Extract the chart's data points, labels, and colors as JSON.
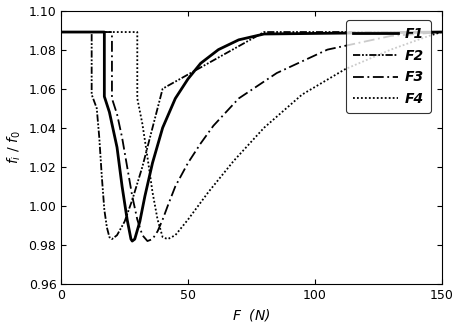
{
  "title": "",
  "xlabel": "F  (N)",
  "ylabel": "f_i / f_0",
  "xlim": [
    0,
    150
  ],
  "ylim": [
    0.96,
    1.1
  ],
  "yticks": [
    0.96,
    0.98,
    1.0,
    1.02,
    1.04,
    1.06,
    1.08,
    1.1
  ],
  "xticks": [
    0,
    50,
    100,
    150
  ],
  "legend_labels": [
    "F1",
    "F2",
    "F3",
    "F4"
  ],
  "background_color": "white",
  "F1_x": [
    0,
    17,
    17,
    19,
    22,
    24,
    26,
    27.5,
    28,
    29,
    31,
    33,
    36,
    40,
    45,
    50,
    55,
    62,
    70,
    80,
    150
  ],
  "F1_y": [
    1.089,
    1.089,
    1.056,
    1.048,
    1.03,
    1.01,
    0.993,
    0.983,
    0.982,
    0.983,
    0.992,
    1.005,
    1.022,
    1.04,
    1.055,
    1.065,
    1.073,
    1.08,
    1.085,
    1.088,
    1.089
  ],
  "F2_x": [
    0,
    12,
    12,
    14,
    15,
    16,
    17,
    18,
    19,
    20,
    22,
    25,
    28,
    32,
    36,
    40,
    80,
    150
  ],
  "F2_y": [
    1.089,
    1.089,
    1.057,
    1.05,
    1.035,
    1.015,
    0.998,
    0.989,
    0.984,
    0.983,
    0.985,
    0.992,
    1.003,
    1.02,
    1.04,
    1.06,
    1.089,
    1.089
  ],
  "F3_x": [
    0,
    20,
    20,
    22,
    24,
    26,
    28,
    30,
    32,
    34,
    36,
    38,
    40,
    42,
    45,
    50,
    55,
    60,
    70,
    85,
    105,
    130,
    150
  ],
  "F3_y": [
    1.089,
    1.089,
    1.055,
    1.047,
    1.035,
    1.02,
    1.005,
    0.993,
    0.985,
    0.982,
    0.983,
    0.987,
    0.993,
    1.0,
    1.01,
    1.022,
    1.032,
    1.041,
    1.055,
    1.068,
    1.08,
    1.087,
    1.089
  ],
  "F4_x": [
    0,
    30,
    30,
    32,
    34,
    36,
    38,
    40,
    42,
    45,
    50,
    58,
    68,
    80,
    95,
    112,
    130,
    145,
    150
  ],
  "F4_y": [
    1.089,
    1.089,
    1.055,
    1.042,
    1.025,
    1.007,
    0.993,
    0.984,
    0.983,
    0.985,
    0.993,
    1.007,
    1.023,
    1.04,
    1.057,
    1.07,
    1.08,
    1.087,
    1.089
  ]
}
